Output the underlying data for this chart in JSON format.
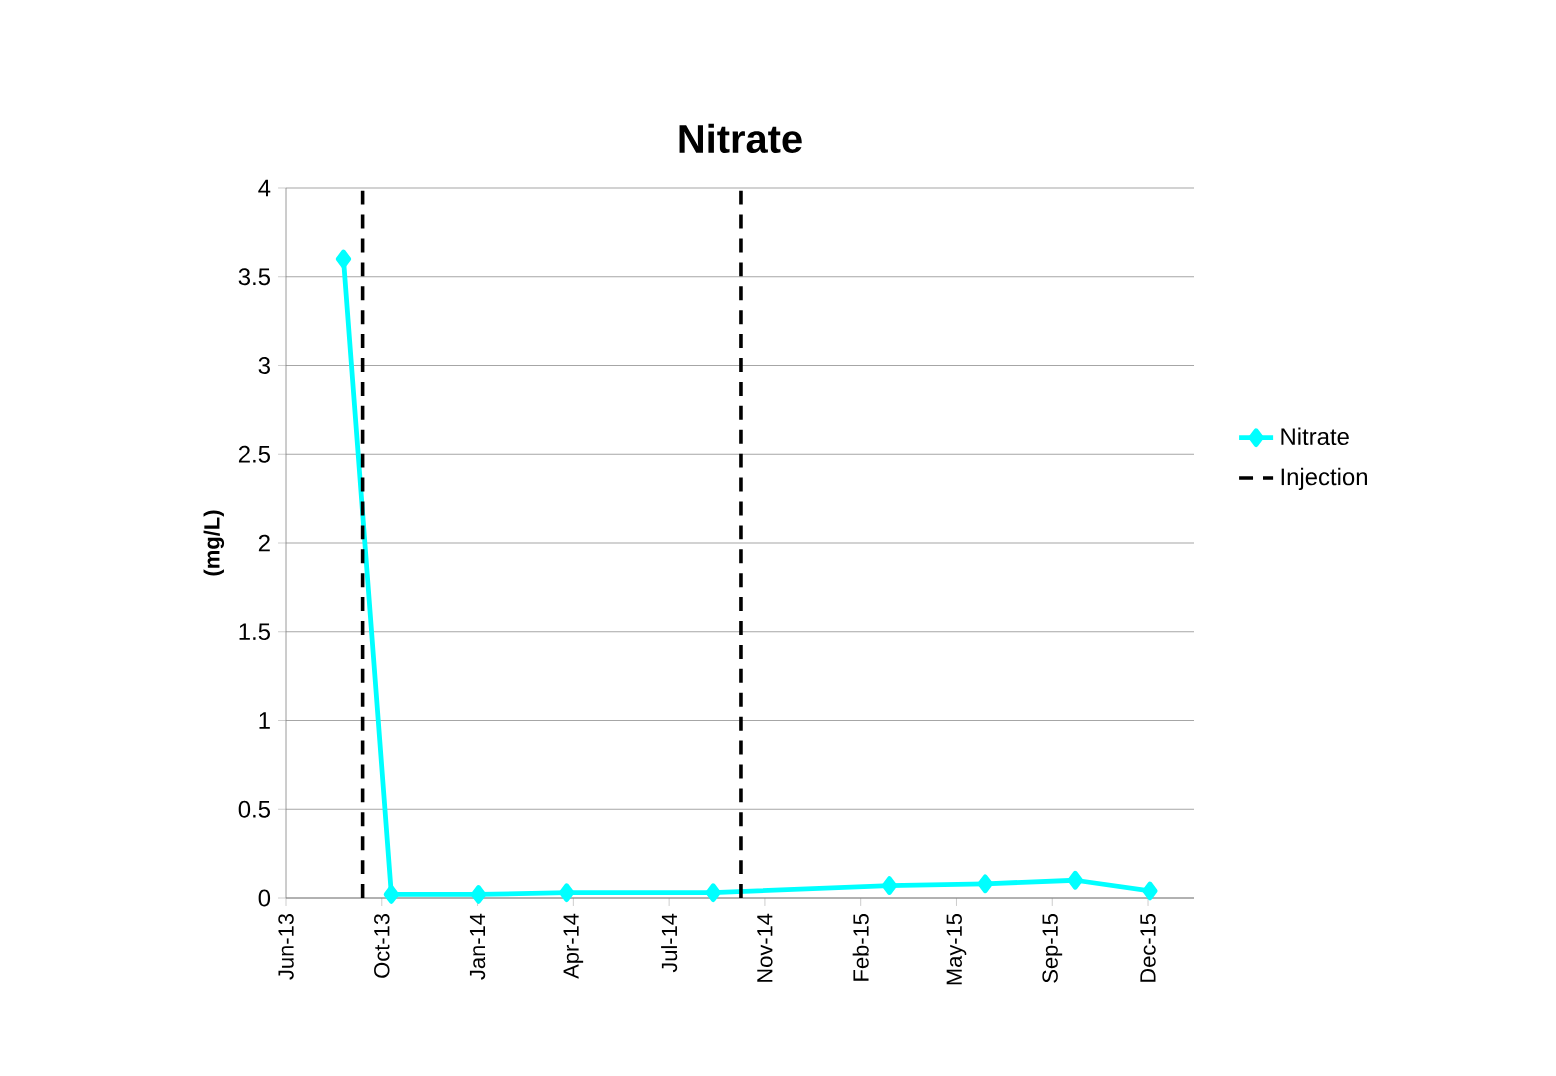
{
  "chart_data": {
    "type": "line",
    "title": "Nitrate",
    "ylabel": "(mg/L)",
    "x": [
      "2013-08-24",
      "2013-10-13",
      "2014-01-12",
      "2014-04-14",
      "2014-09-14",
      "2015-03-17",
      "2015-06-25",
      "2015-09-27",
      "2015-12-14"
    ],
    "series": [
      {
        "name": "Nitrate",
        "color": "#00ffff",
        "values": [
          3.6,
          0.02,
          0.02,
          0.03,
          0.03,
          0.07,
          0.08,
          0.1,
          0.04
        ]
      }
    ],
    "xlim": [
      "2013-06-25",
      "2016-01-29"
    ],
    "xticks": [
      {
        "value": "2013-06-25",
        "label": "Jun-13"
      },
      {
        "value": "2013-10-03",
        "label": "Oct-13"
      },
      {
        "value": "2014-01-11",
        "label": "Jan-14"
      },
      {
        "value": "2014-04-21",
        "label": "Apr-14"
      },
      {
        "value": "2014-07-30",
        "label": "Jul-14"
      },
      {
        "value": "2014-11-07",
        "label": "Nov-14"
      },
      {
        "value": "2015-02-15",
        "label": "Feb-15"
      },
      {
        "value": "2015-05-26",
        "label": "May-15"
      },
      {
        "value": "2015-09-03",
        "label": "Sep-15"
      },
      {
        "value": "2015-12-12",
        "label": "Dec-15"
      }
    ],
    "ylim": [
      0,
      4
    ],
    "yticks": [
      0,
      0.5,
      1,
      1.5,
      2,
      2.5,
      3,
      3.5,
      4
    ],
    "ref_lines": [
      {
        "axis": "x",
        "value": "2013-09-13",
        "label": "Injection",
        "color": "#000000",
        "line_style": "dashed"
      },
      {
        "axis": "x",
        "value": "2014-10-13",
        "color": "#000000",
        "line_style": "dashed"
      }
    ],
    "grid": "y",
    "legend": "right",
    "marker": "diamond",
    "line_style": "solid"
  }
}
